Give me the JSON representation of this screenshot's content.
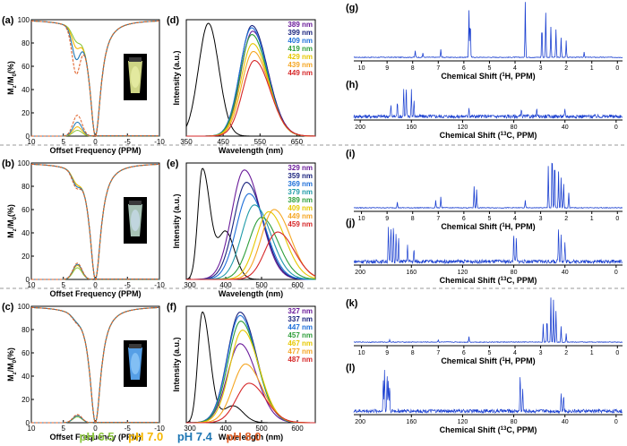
{
  "figure": {
    "legend_prefix_note": ""
  },
  "ph_legend": [
    {
      "label": "pH 6.5",
      "color": "#8cc63f"
    },
    {
      "label": "pH 7.0",
      "color": "#f5b700"
    },
    {
      "label": "pH 7.4",
      "color": "#1f77b4"
    },
    {
      "label": "pH 8.0",
      "color": "#e0622a"
    }
  ],
  "chart_data": [
    {
      "panel": "(a)",
      "type": "line",
      "xlabel": "Offset Frequency (PPM)",
      "ylabel": "Mz/M0(%)",
      "ylabel_main": "M",
      "ylabel_sub1": "z",
      "ylabel_mid": "/M",
      "ylabel_sub2": "0",
      "ylabel_end": "(%)",
      "xlim": [
        10,
        -10
      ],
      "ylim": [
        0,
        100
      ],
      "xticks": [
        "10",
        "5",
        "0",
        "-5",
        "-10"
      ],
      "yticks": [
        "0",
        "20",
        "40",
        "60",
        "80",
        "100"
      ],
      "cest_peak_ppm": 3,
      "cest_depth": [
        9,
        15,
        26,
        40
      ],
      "asym": [
        5,
        8,
        12,
        18
      ],
      "inset": {
        "vial_color": "#e4ec94",
        "glow": "#f4f9b4"
      }
    },
    {
      "panel": "(b)",
      "type": "line",
      "xlabel": "Offset Frequency (PPM)",
      "ylabel": "Mz/M0(%)",
      "ylabel_main": "M",
      "ylabel_sub1": "z",
      "ylabel_mid": "/M",
      "ylabel_sub2": "0",
      "ylabel_end": "(%)",
      "xlim": [
        10,
        -10
      ],
      "ylim": [
        0,
        100
      ],
      "xticks": [
        "10",
        "5",
        "0",
        "-5",
        "-10"
      ],
      "yticks": [
        "0",
        "20",
        "40",
        "60",
        "80",
        "100"
      ],
      "cest_peak_ppm": 3,
      "cest_depth": [
        8,
        8,
        10,
        12
      ],
      "asym": [
        10,
        12,
        13,
        14
      ],
      "inset": {
        "vial_color": "#b9d7c9",
        "glow": "#d6e6ff"
      }
    },
    {
      "panel": "(c)",
      "type": "line",
      "xlabel": "Offset Frequency (PPM)",
      "ylabel": "Mz/M0(%)",
      "ylabel_main": "M",
      "ylabel_sub1": "z",
      "ylabel_mid": "/M",
      "ylabel_sub2": "0",
      "ylabel_end": "(%)",
      "xlim": [
        10,
        -10
      ],
      "ylim": [
        0,
        100
      ],
      "xticks": [
        "10",
        "5",
        "0",
        "-5",
        "-10"
      ],
      "yticks": [
        "0",
        "20",
        "40",
        "60",
        "80",
        "100"
      ],
      "cest_peak_ppm": 3,
      "cest_depth": [
        3,
        3,
        3,
        4
      ],
      "asym": [
        5,
        6,
        6,
        7
      ],
      "inset": {
        "vial_color": "#5fb0ff",
        "glow": "#a8d8ff"
      }
    },
    {
      "panel": "(d)",
      "type": "line",
      "xlabel": "Wavelength (nm)",
      "ylabel": "Intensity (a.u.)",
      "xlim": [
        350,
        700
      ],
      "xticks": [
        "350",
        "450",
        "550",
        "650"
      ],
      "absorption_peak": 410,
      "series": [
        {
          "name": "389 nm",
          "peak": 530,
          "height": 0.93,
          "color": "#6a1b9a"
        },
        {
          "name": "399 nm",
          "peak": 528,
          "height": 0.98,
          "color": "#1a237e"
        },
        {
          "name": "409 nm",
          "peak": 527,
          "height": 0.96,
          "color": "#1e6fd9"
        },
        {
          "name": "419 nm",
          "peak": 528,
          "height": 0.9,
          "color": "#2e9e3a"
        },
        {
          "name": "429 nm",
          "peak": 530,
          "height": 0.82,
          "color": "#e6c800"
        },
        {
          "name": "439 nm",
          "peak": 532,
          "height": 0.75,
          "color": "#f5a623"
        },
        {
          "name": "449 nm",
          "peak": 535,
          "height": 0.67,
          "color": "#d62728"
        }
      ]
    },
    {
      "panel": "(e)",
      "type": "line",
      "xlabel": "Wavelength (nm)",
      "ylabel": "Intensity (a.u.)",
      "xlim": [
        290,
        650
      ],
      "xticks": [
        "300",
        "400",
        "500",
        "600"
      ],
      "absorption_peak": 335,
      "series": [
        {
          "name": "329 nm",
          "peak": 452,
          "height": 0.97,
          "color": "#6a1b9a"
        },
        {
          "name": "359 nm",
          "peak": 458,
          "height": 0.86,
          "color": "#1a237e"
        },
        {
          "name": "369 nm",
          "peak": 465,
          "height": 0.76,
          "color": "#1e6fd9"
        },
        {
          "name": "379 nm",
          "peak": 480,
          "height": 0.66,
          "color": "#1e9aa8"
        },
        {
          "name": "389 nm",
          "peak": 500,
          "height": 0.55,
          "color": "#2e9e3a"
        },
        {
          "name": "409 nm",
          "peak": 520,
          "height": 0.6,
          "color": "#e6c800"
        },
        {
          "name": "449 nm",
          "peak": 535,
          "height": 0.62,
          "color": "#f5a623"
        },
        {
          "name": "459 nm",
          "peak": 545,
          "height": 0.42,
          "color": "#d62728"
        }
      ]
    },
    {
      "panel": "(f)",
      "type": "line",
      "xlabel": "Wavelength (nm)",
      "ylabel": "Intensity (a.u.)",
      "xlim": [
        290,
        650
      ],
      "xticks": [
        "300",
        "400",
        "500",
        "600"
      ],
      "absorption_peak": 335,
      "series": [
        {
          "name": "327 nm",
          "peak": 440,
          "height": 0.7,
          "color": "#6a1b9a"
        },
        {
          "name": "337 nm",
          "peak": 440,
          "height": 0.98,
          "color": "#1a237e"
        },
        {
          "name": "447 nm",
          "peak": 440,
          "height": 0.95,
          "color": "#1e6fd9"
        },
        {
          "name": "457 nm",
          "peak": 442,
          "height": 0.9,
          "color": "#2e9e3a"
        },
        {
          "name": "467 nm",
          "peak": 447,
          "height": 0.82,
          "color": "#e6c800"
        },
        {
          "name": "477 nm",
          "peak": 455,
          "height": 0.52,
          "color": "#f5a623"
        },
        {
          "name": "487 nm",
          "peak": 465,
          "height": 0.35,
          "color": "#d62728"
        }
      ]
    },
    {
      "panel": "(g)",
      "type": "line",
      "xlabel": "Chemical Shift (1H, PPM)",
      "xlabel_pre": "Chemical Shift (",
      "xlabel_sup": "1",
      "xlabel_post": "H, PPM)",
      "xlim": [
        10.3,
        -0.2
      ],
      "xticks": [
        "10",
        "9",
        "8",
        "7",
        "6",
        "5",
        "4",
        "3",
        "2",
        "1",
        "0"
      ],
      "peaks": [
        [
          7.9,
          0.12
        ],
        [
          7.6,
          0.08
        ],
        [
          6.9,
          0.15
        ],
        [
          5.8,
          0.85
        ],
        [
          5.75,
          0.7
        ],
        [
          3.6,
          1.0
        ],
        [
          2.95,
          0.6
        ],
        [
          2.8,
          0.8
        ],
        [
          2.6,
          0.55
        ],
        [
          2.4,
          0.5
        ],
        [
          2.2,
          0.35
        ],
        [
          2.0,
          0.3
        ],
        [
          1.3,
          0.1
        ]
      ]
    },
    {
      "panel": "(h)",
      "type": "line",
      "xlabel": "Chemical Shift (13C, PPM)",
      "xlabel_pre": "Chemical Shift (",
      "xlabel_sup": "13",
      "xlabel_post": "C, PPM)",
      "xlim": [
        205,
        -5
      ],
      "xticks": [
        "200",
        "160",
        "120",
        "80",
        "40",
        "0"
      ],
      "peaks": [
        [
          176,
          0.35
        ],
        [
          171,
          0.45
        ],
        [
          166,
          0.9
        ],
        [
          164,
          0.9
        ],
        [
          160,
          0.85
        ],
        [
          158,
          0.5
        ],
        [
          115,
          0.3
        ],
        [
          74,
          0.25
        ],
        [
          62,
          0.2
        ],
        [
          40,
          0.2
        ]
      ]
    },
    {
      "panel": "(i)",
      "type": "line",
      "xlabel": "Chemical Shift (1H, PPM)",
      "xlabel_pre": "Chemical Shift (",
      "xlabel_sup": "1",
      "xlabel_post": "H, PPM)",
      "xlim": [
        10.3,
        -0.2
      ],
      "xticks": [
        "10",
        "9",
        "8",
        "7",
        "6",
        "5",
        "4",
        "3",
        "2",
        "1",
        "0"
      ],
      "peaks": [
        [
          8.6,
          0.1
        ],
        [
          7.1,
          0.12
        ],
        [
          6.9,
          0.18
        ],
        [
          5.6,
          0.35
        ],
        [
          5.5,
          0.3
        ],
        [
          3.6,
          0.12
        ],
        [
          2.7,
          0.7
        ],
        [
          2.55,
          1.0
        ],
        [
          2.45,
          0.85
        ],
        [
          2.3,
          0.6
        ],
        [
          2.2,
          0.5
        ],
        [
          2.1,
          0.4
        ],
        [
          1.9,
          0.25
        ]
      ]
    },
    {
      "panel": "(j)",
      "type": "line",
      "xlabel": "Chemical Shift (13C, PPM)",
      "xlabel_pre": "Chemical Shift (",
      "xlabel_sup": "13",
      "xlabel_post": "C, PPM)",
      "xlim": [
        205,
        -5
      ],
      "xticks": [
        "200",
        "160",
        "120",
        "80",
        "40",
        "0"
      ],
      "peaks": [
        [
          178,
          0.9
        ],
        [
          176,
          0.85
        ],
        [
          174,
          0.95
        ],
        [
          172,
          0.7
        ],
        [
          170,
          0.6
        ],
        [
          163,
          0.45
        ],
        [
          158,
          0.3
        ],
        [
          80,
          0.75
        ],
        [
          78,
          0.6
        ],
        [
          45,
          0.85
        ],
        [
          43,
          0.7
        ],
        [
          40,
          0.5
        ]
      ]
    },
    {
      "panel": "(k)",
      "type": "line",
      "xlabel": "Chemical Shift (1H, PPM)",
      "xlabel_pre": "Chemical Shift (",
      "xlabel_sup": "1",
      "xlabel_post": "H, PPM)",
      "xlim": [
        10.3,
        -0.2
      ],
      "xticks": [
        "10",
        "9",
        "8",
        "7",
        "6",
        "5",
        "4",
        "3",
        "2",
        "1",
        "0"
      ],
      "peaks": [
        [
          8.9,
          0.05
        ],
        [
          7.0,
          0.05
        ],
        [
          5.8,
          0.12
        ],
        [
          2.9,
          0.4
        ],
        [
          2.75,
          0.55
        ],
        [
          2.6,
          1.0
        ],
        [
          2.5,
          0.95
        ],
        [
          2.4,
          0.7
        ],
        [
          2.2,
          0.35
        ],
        [
          2.0,
          0.2
        ]
      ]
    },
    {
      "panel": "(l)",
      "type": "line",
      "xlabel": "Chemical Shift (13C, PPM)",
      "xlabel_pre": "Chemical Shift (",
      "xlabel_sup": "13",
      "xlabel_post": "C, PPM)",
      "xlim": [
        205,
        -5
      ],
      "xticks": [
        "200",
        "160",
        "120",
        "80",
        "40",
        "0"
      ],
      "peaks": [
        [
          182,
          0.75
        ],
        [
          181,
          0.95
        ],
        [
          179,
          0.85
        ],
        [
          178,
          0.7
        ],
        [
          177,
          0.6
        ],
        [
          75,
          0.85
        ],
        [
          73,
          0.5
        ],
        [
          43,
          0.4
        ],
        [
          41,
          0.35
        ]
      ]
    }
  ]
}
